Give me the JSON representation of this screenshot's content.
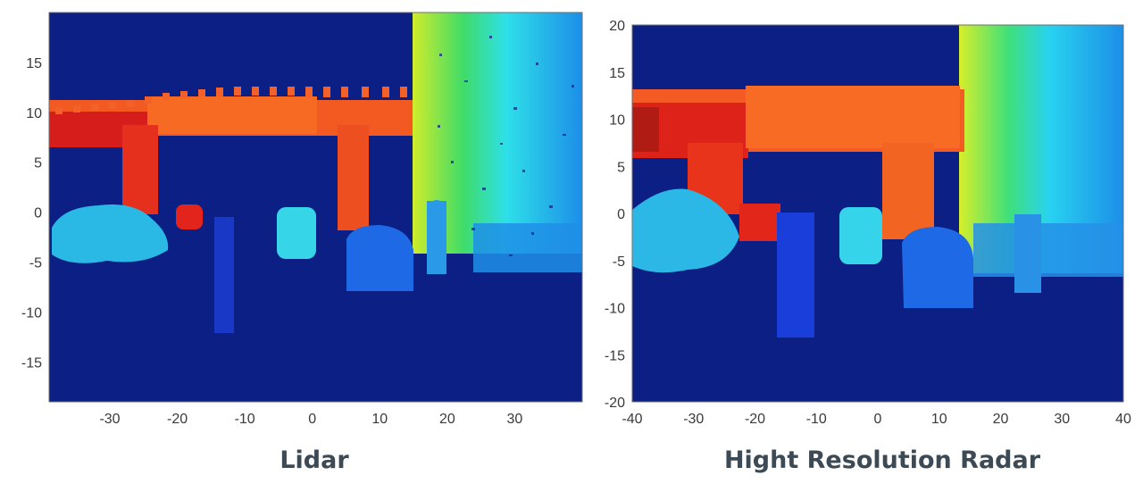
{
  "chart_data": [
    {
      "type": "heatmap",
      "title": "Lidar",
      "xlim": [
        -39,
        40
      ],
      "ylim": [
        -19,
        20
      ],
      "x_ticks": [
        "-30",
        "-20",
        "-10",
        "0",
        "10",
        "20",
        "30"
      ],
      "y_ticks": [
        "15",
        "10",
        "5",
        "0",
        "-5",
        "-10",
        "-15"
      ],
      "colormap": "jet",
      "background_color": "#0c1f84"
    },
    {
      "type": "heatmap",
      "title": "Hight Resolution Radar",
      "xlim": [
        -40,
        40
      ],
      "ylim": [
        -20,
        20
      ],
      "x_ticks": [
        "-40",
        "-30",
        "-20",
        "-10",
        "0",
        "10",
        "20",
        "30",
        "40"
      ],
      "y_ticks": [
        "20",
        "15",
        "10",
        "5",
        "0",
        "-5",
        "-10",
        "-15",
        "-20"
      ],
      "colormap": "jet",
      "background_color": "#0c1f84"
    }
  ]
}
